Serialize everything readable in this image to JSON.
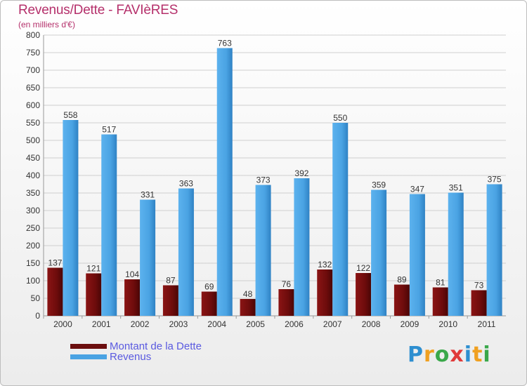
{
  "header": {
    "title": "Revenus/Dette - FAVIèRES",
    "subtitle": "(en milliers d'€)"
  },
  "chart_data": {
    "type": "bar",
    "title": "Revenus/Dette - FAVIèRES",
    "ylabel": "(en milliers d'€)",
    "xlabel": "",
    "categories": [
      "2000",
      "2001",
      "2002",
      "2003",
      "2004",
      "2005",
      "2006",
      "2007",
      "2008",
      "2009",
      "2010",
      "2011"
    ],
    "ylim": [
      0,
      800
    ],
    "yticks": [
      0,
      50,
      100,
      150,
      200,
      250,
      300,
      350,
      400,
      450,
      500,
      550,
      600,
      650,
      700,
      750,
      800
    ],
    "grid": true,
    "series": [
      {
        "name": "Montant de la Dette",
        "color": "#7a1010",
        "values": [
          137,
          121,
          104,
          87,
          69,
          48,
          76,
          132,
          122,
          89,
          81,
          73
        ]
      },
      {
        "name": "Revenus",
        "color": "#4aa3e3",
        "values": [
          558,
          517,
          331,
          363,
          763,
          373,
          392,
          550,
          359,
          347,
          351,
          375
        ]
      }
    ],
    "legend_position": "bottom-left"
  },
  "legend": {
    "items": [
      {
        "label": "Montant de la Dette",
        "color": "#6b0e0e"
      },
      {
        "label": "Revenus",
        "color": "#4aa3e3"
      }
    ]
  },
  "logo": {
    "letters": [
      "P",
      "r",
      "o",
      "x",
      "i",
      "t",
      "i"
    ]
  }
}
